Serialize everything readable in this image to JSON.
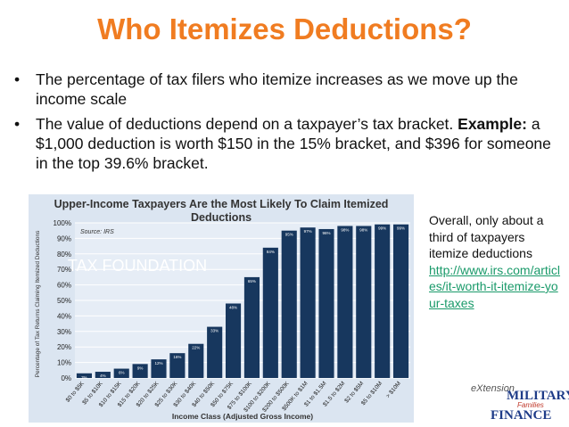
{
  "title": "Who Itemizes Deductions?",
  "bullets": [
    {
      "text": "The percentage of tax filers who itemize increases as we move up the income scale"
    },
    {
      "prefix": "The value of deductions depend on a taxpayer’s tax bracket.",
      "bold": "Example:",
      "text": " a $1,000 deduction is worth $150 in the 15% bracket, and $396 for someone in the top 39.6% bracket."
    }
  ],
  "bullet_symbol": "•",
  "side_note": {
    "text": "Overall, only about a third of taxpayers itemize deductions",
    "link": "http://www.irs.com/articles/it-worth-it-itemize-your-taxes"
  },
  "logo": {
    "extension": "eXtension",
    "military": "MILITARY",
    "families": "Families",
    "finance": "FINANCE"
  },
  "chart_data": {
    "type": "bar",
    "title": "Upper-Income Taxpayers Are the Most Likely To Claim Itemized Deductions",
    "source": "Source: IRS",
    "watermark": "TAX FOUNDATION",
    "xlabel": "Income Class (Adjusted Gross Income)",
    "ylabel": "Percentage of Tax Returns Claiming Itemized Deductions",
    "ylim": [
      0,
      100
    ],
    "yticks": [
      "0%",
      "10%",
      "20%",
      "30%",
      "40%",
      "50%",
      "60%",
      "70%",
      "80%",
      "90%",
      "100%"
    ],
    "categories": [
      "$0 to $5K",
      "$5 to $10K",
      "$10 to $15K",
      "$15 to $20K",
      "$20 to $25K",
      "$25 to $30K",
      "$30 to $40K",
      "$40 to $50K",
      "$50 to $75K",
      "$75 to $100K",
      "$100 to $200K",
      "$200 to $500K",
      "$500K to $1M",
      "$1 to $1.5M",
      "$1.5 to $2M",
      "$2 to $5M",
      "$5 to $10M",
      "> $10M"
    ],
    "values": [
      3,
      4,
      6,
      9,
      12,
      16,
      22,
      33,
      48,
      65,
      84,
      95,
      97,
      96,
      98,
      98,
      99,
      99
    ],
    "value_labels": [
      "3%",
      "4%",
      "6%",
      "9%",
      "12%",
      "16%",
      "22%",
      "33%",
      "48%",
      "65%",
      "84%",
      "95%",
      "97%",
      "96%",
      "98%",
      "98%",
      "99%",
      "99%"
    ],
    "colors": {
      "bar": "#17375e",
      "background": "#dbe5f1",
      "grid": "#ffffff",
      "label": "#ffffff"
    }
  }
}
